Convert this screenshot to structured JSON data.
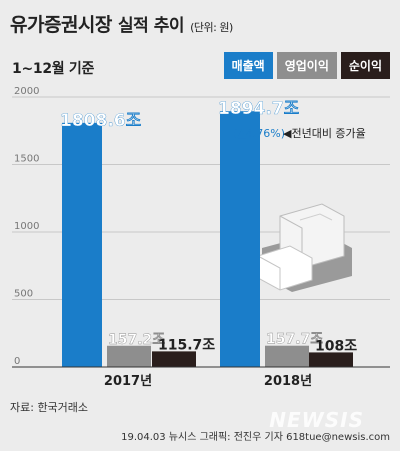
{
  "header": {
    "title": "유가증권시장",
    "title_sub": "실적 추이",
    "unit": "(단위: 원)",
    "subtitle": "1~12월 기준"
  },
  "legend": [
    {
      "label": "매출액",
      "color": "#1a7dc9"
    },
    {
      "label": "영업이익",
      "color": "#8e8e8e"
    },
    {
      "label": "순이익",
      "color": "#2a1e1c"
    }
  ],
  "annotation": {
    "growth": "(▲4.76%)",
    "note": "◀전년대비 증가율"
  },
  "source": "자료: 한국거래소",
  "credit": "19.04.03 뉴시스 그래픽: 전진우 기자 618tue@newsis.com",
  "watermark": "NEWSIS",
  "chart_data": {
    "type": "bar",
    "categories": [
      "2017년",
      "2018년"
    ],
    "series": [
      {
        "name": "매출액",
        "values": [
          1808.6,
          1894.7
        ],
        "labels": [
          "1808.6조",
          "1894.7조"
        ],
        "color": "#1a7dc9"
      },
      {
        "name": "영업이익",
        "values": [
          157.2,
          157.7
        ],
        "labels": [
          "157.2조",
          "157.7조"
        ],
        "color": "#8e8e8e"
      },
      {
        "name": "순이익",
        "values": [
          115.7,
          108
        ],
        "labels": [
          "115.7조",
          "108조"
        ],
        "color": "#2a1e1c"
      }
    ],
    "yticks": [
      0,
      500,
      1000,
      1500,
      2000
    ],
    "ylim": [
      0,
      2000
    ],
    "grid": true
  }
}
